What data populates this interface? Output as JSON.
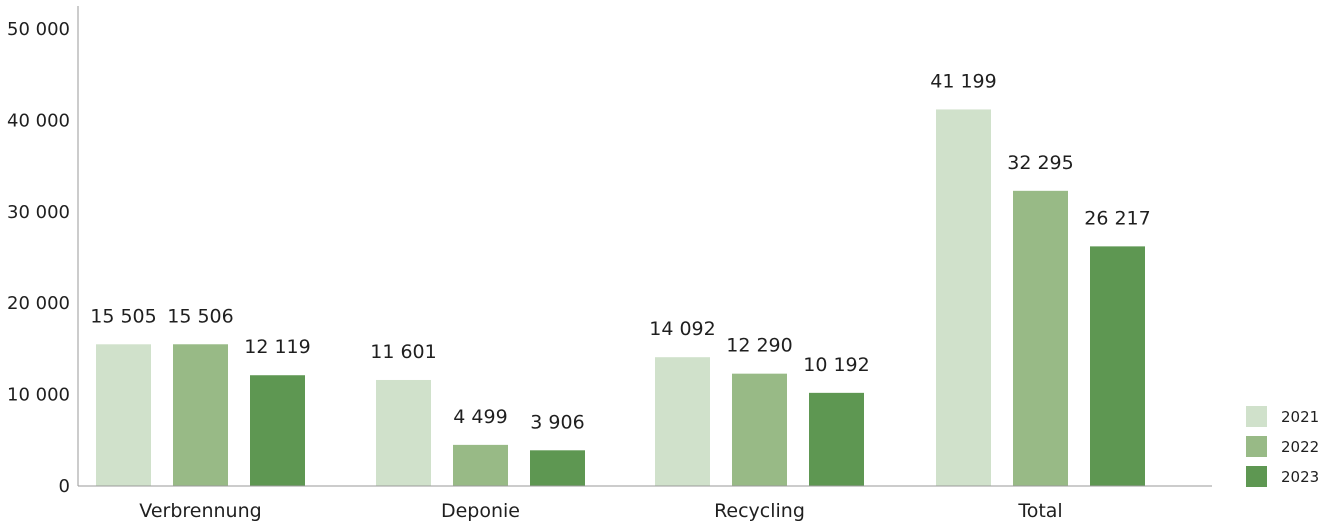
{
  "chart_data": {
    "type": "bar",
    "title": "",
    "xlabel": "",
    "ylabel": "",
    "ylim": [
      0,
      50000
    ],
    "yticks": [
      0,
      10000,
      20000,
      30000,
      40000,
      50000
    ],
    "ytick_labels": [
      "0",
      "10 000",
      "20 000",
      "30 000",
      "40 000",
      "50 000"
    ],
    "categories": [
      "Verbrennung",
      "Deponie",
      "Recycling",
      "Total"
    ],
    "series": [
      {
        "name": "2021",
        "color": "#d0e1cb",
        "values": [
          15505,
          11601,
          14092,
          41199
        ],
        "labels": [
          "15 505",
          "11 601",
          "14 092",
          "41 199"
        ]
      },
      {
        "name": "2022",
        "color": "#98ba86",
        "values": [
          15506,
          4499,
          12290,
          32295
        ],
        "labels": [
          "15 506",
          "4 499",
          "12 290",
          "32 295"
        ]
      },
      {
        "name": "2023",
        "color": "#5e9752",
        "values": [
          12119,
          3906,
          10192,
          26217
        ],
        "labels": [
          "12 119",
          "3 906",
          "10 192",
          "26 217"
        ]
      }
    ],
    "legend_position": "bottom-right",
    "grid": false
  }
}
